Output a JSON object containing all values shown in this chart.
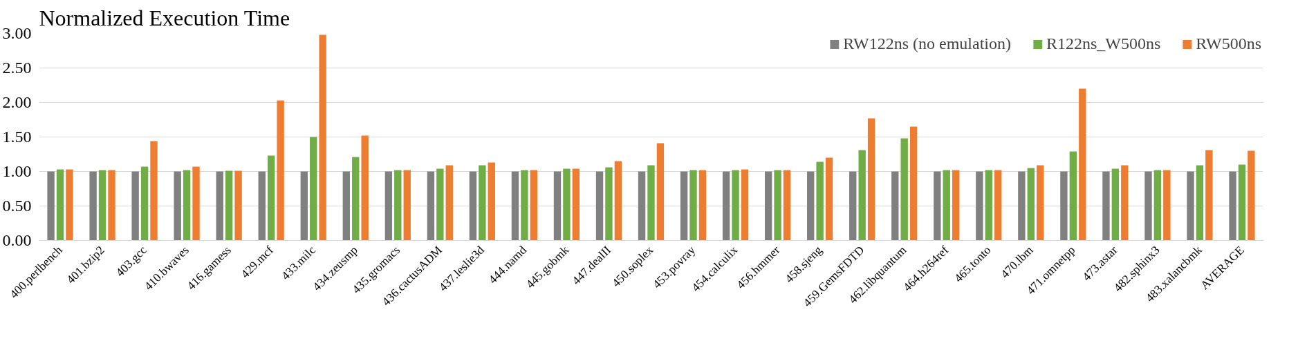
{
  "chart_data": {
    "type": "bar",
    "title": "Normalized Execution Time",
    "categories": [
      "400.perlbench",
      "401.bzip2",
      "403.gcc",
      "410.bwaves",
      "416.gamess",
      "429.mcf",
      "433.milc",
      "434.zeusmp",
      "435.gromacs",
      "436.cactusADM",
      "437.leslie3d",
      "444.namd",
      "445.gobmk",
      "447.dealII",
      "450.soplex",
      "453.povray",
      "454.calculix",
      "456.hmmer",
      "458.sjeng",
      "459.GemsFDTD",
      "462.libquantum",
      "464.h264ref",
      "465.tonto",
      "470.lbm",
      "471.omnetpp",
      "473.astar",
      "482.sphinx3",
      "483.xalancbmk",
      "AVERAGE"
    ],
    "series": [
      {
        "name": "RW122ns (no emulation)",
        "color": "#808080",
        "values": [
          1,
          1,
          1,
          1,
          1,
          1,
          1,
          1,
          1,
          1,
          1,
          1,
          1,
          1,
          1,
          1,
          1,
          1,
          1,
          1,
          1,
          1,
          1,
          1,
          1,
          1,
          1,
          1,
          1
        ]
      },
      {
        "name": "R122ns_W500ns",
        "color": "#70ad47",
        "values": [
          1.03,
          1.02,
          1.07,
          1.02,
          1.01,
          1.23,
          1.5,
          1.21,
          1.02,
          1.04,
          1.09,
          1.02,
          1.04,
          1.06,
          1.09,
          1.02,
          1.02,
          1.02,
          1.14,
          1.31,
          1.48,
          1.02,
          1.02,
          1.05,
          1.29,
          1.04,
          1.02,
          1.09,
          1.1
        ]
      },
      {
        "name": "RW500ns",
        "color": "#ed7d31",
        "values": [
          1.03,
          1.02,
          1.44,
          1.07,
          1.01,
          2.03,
          2.98,
          1.52,
          1.02,
          1.09,
          1.13,
          1.02,
          1.04,
          1.15,
          1.41,
          1.02,
          1.03,
          1.02,
          1.2,
          1.77,
          1.65,
          1.02,
          1.02,
          1.09,
          2.2,
          1.09,
          1.02,
          1.31,
          1.3
        ]
      }
    ],
    "ylim": [
      0,
      3
    ],
    "yticks": [
      {
        "value": 0,
        "label": "0.00"
      },
      {
        "value": 0.5,
        "label": "0.50"
      },
      {
        "value": 1,
        "label": "1.00"
      },
      {
        "value": 1.5,
        "label": "1.50"
      },
      {
        "value": 2,
        "label": "2.00"
      },
      {
        "value": 2.5,
        "label": "2.50"
      },
      {
        "value": 3,
        "label": "3.00"
      }
    ],
    "grid": "y",
    "legend": "top right"
  }
}
